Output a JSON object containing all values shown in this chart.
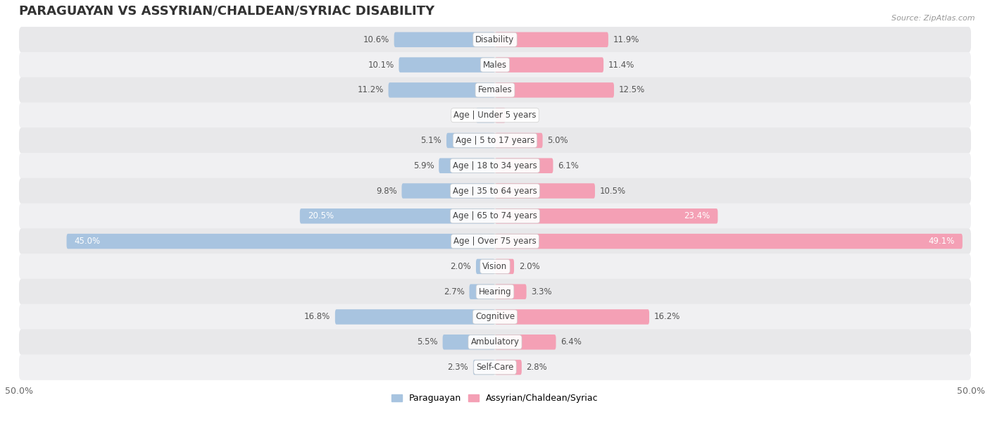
{
  "title": "PARAGUAYAN VS ASSYRIAN/CHALDEAN/SYRIAC DISABILITY",
  "source": "Source: ZipAtlas.com",
  "categories": [
    "Disability",
    "Males",
    "Females",
    "Age | Under 5 years",
    "Age | 5 to 17 years",
    "Age | 18 to 34 years",
    "Age | 35 to 64 years",
    "Age | 65 to 74 years",
    "Age | Over 75 years",
    "Vision",
    "Hearing",
    "Cognitive",
    "Ambulatory",
    "Self-Care"
  ],
  "paraguayan": [
    10.6,
    10.1,
    11.2,
    2.0,
    5.1,
    5.9,
    9.8,
    20.5,
    45.0,
    2.0,
    2.7,
    16.8,
    5.5,
    2.3
  ],
  "assyrian": [
    11.9,
    11.4,
    12.5,
    1.1,
    5.0,
    6.1,
    10.5,
    23.4,
    49.1,
    2.0,
    3.3,
    16.2,
    6.4,
    2.8
  ],
  "paraguayan_label": "Paraguayan",
  "assyrian_label": "Assyrian/Chaldean/Syriac",
  "paraguayan_color": "#a8c4e0",
  "assyrian_color": "#f4a0b5",
  "paraguayan_color_dark": "#7badd4",
  "assyrian_color_dark": "#f07090",
  "bar_height": 0.6,
  "xlim": 50.0,
  "row_colors": [
    "#e8e8ea",
    "#f0f0f2"
  ],
  "title_fontsize": 13,
  "value_fontsize": 8.5,
  "category_fontsize": 8.5,
  "legend_fontsize": 9
}
